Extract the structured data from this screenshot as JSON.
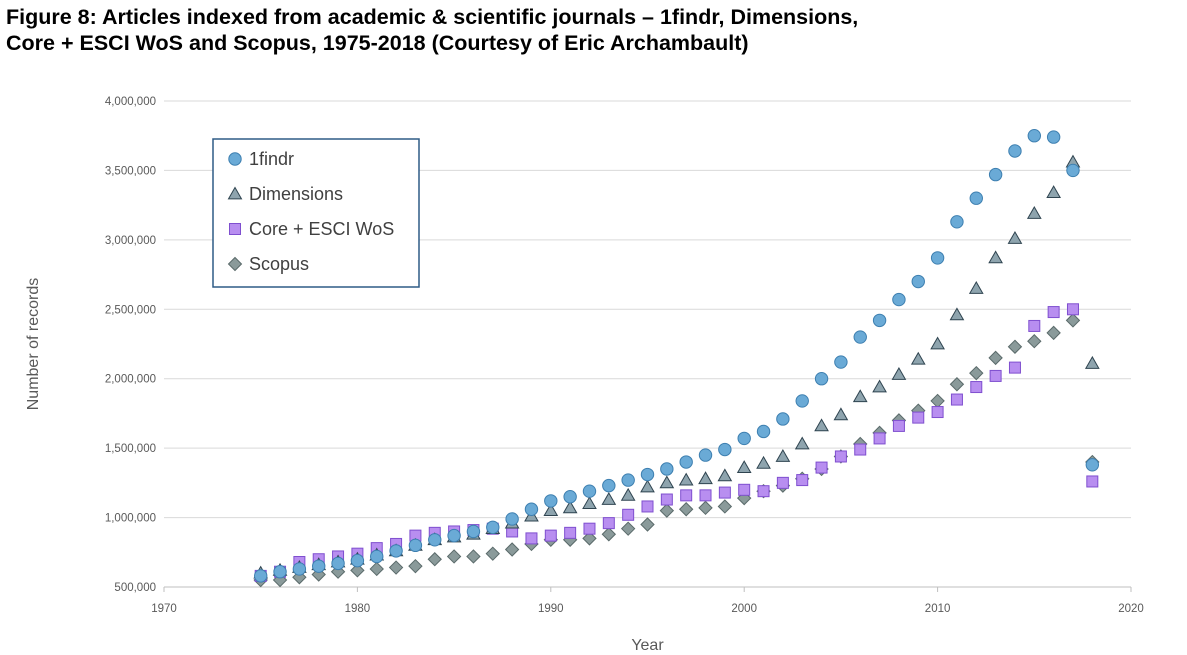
{
  "figure": {
    "title_line1": "Figure 8: Articles indexed from academic & scientific journals – 1findr, Dimensions,",
    "title_line2": "Core + ESCI WoS and Scopus, 1975-2018 (Courtesy of Eric Archambault)"
  },
  "chart_data": {
    "type": "scatter",
    "title": "Figure 8: Articles indexed from academic & scientific journals – 1findr, Dimensions, Core + ESCI WoS and Scopus, 1975-2018 (Courtesy of Eric Archambault)",
    "xlabel": "Year",
    "ylabel": "Number of records",
    "xlim": [
      1970,
      2020
    ],
    "ylim": [
      500000,
      4000000
    ],
    "xticks": [
      1970,
      1980,
      1990,
      2000,
      2010,
      2020
    ],
    "xtick_labels": [
      "1970",
      "1980",
      "1990",
      "2000",
      "2010",
      "2020"
    ],
    "yticks": [
      500000,
      1000000,
      1500000,
      2000000,
      2500000,
      3000000,
      3500000,
      4000000
    ],
    "ytick_labels": [
      "500,000",
      "1,000,000",
      "1,500,000",
      "2,000,000",
      "2,500,000",
      "3,000,000",
      "3,500,000",
      "4,000,000"
    ],
    "grid": "horizontal",
    "legend_position": "top-left",
    "x": [
      1975,
      1976,
      1977,
      1978,
      1979,
      1980,
      1981,
      1982,
      1983,
      1984,
      1985,
      1986,
      1987,
      1988,
      1989,
      1990,
      1991,
      1992,
      1993,
      1994,
      1995,
      1996,
      1997,
      1998,
      1999,
      2000,
      2001,
      2002,
      2003,
      2004,
      2005,
      2006,
      2007,
      2008,
      2009,
      2010,
      2011,
      2012,
      2013,
      2014,
      2015,
      2016,
      2017,
      2018
    ],
    "series": [
      {
        "name": "1findr",
        "marker": "circle",
        "color": "#6aaad6",
        "stroke": "#3d7fb0",
        "values": [
          580000,
          610000,
          630000,
          650000,
          670000,
          690000,
          720000,
          760000,
          800000,
          840000,
          870000,
          900000,
          930000,
          990000,
          1060000,
          1120000,
          1150000,
          1190000,
          1230000,
          1270000,
          1310000,
          1350000,
          1400000,
          1450000,
          1490000,
          1570000,
          1620000,
          1710000,
          1840000,
          2000000,
          2120000,
          2300000,
          2420000,
          2570000,
          2700000,
          2870000,
          3130000,
          3300000,
          3470000,
          3640000,
          3750000,
          3740000,
          3500000,
          1380000
        ]
      },
      {
        "name": "Dimensions",
        "marker": "triangle",
        "color": "#8ea4ae",
        "stroke": "#2f4450",
        "values": [
          600000,
          620000,
          640000,
          660000,
          680000,
          700000,
          730000,
          760000,
          800000,
          840000,
          860000,
          880000,
          920000,
          960000,
          1010000,
          1050000,
          1070000,
          1100000,
          1130000,
          1160000,
          1220000,
          1250000,
          1270000,
          1280000,
          1300000,
          1360000,
          1390000,
          1440000,
          1530000,
          1660000,
          1740000,
          1870000,
          1940000,
          2030000,
          2140000,
          2250000,
          2460000,
          2650000,
          2870000,
          3010000,
          3190000,
          3340000,
          3560000,
          2110000
        ]
      },
      {
        "name": "Core + ESCI WoS",
        "marker": "square",
        "color": "#b88ef0",
        "stroke": "#7f4fcf",
        "values": [
          580000,
          610000,
          680000,
          700000,
          720000,
          740000,
          780000,
          810000,
          870000,
          890000,
          900000,
          910000,
          920000,
          900000,
          850000,
          870000,
          890000,
          920000,
          960000,
          1020000,
          1080000,
          1130000,
          1160000,
          1160000,
          1180000,
          1200000,
          1190000,
          1250000,
          1270000,
          1360000,
          1440000,
          1490000,
          1570000,
          1660000,
          1720000,
          1760000,
          1850000,
          1940000,
          2020000,
          2080000,
          2380000,
          2480000,
          2500000,
          1260000
        ]
      },
      {
        "name": "Scopus",
        "marker": "diamond",
        "color": "#8a9a9a",
        "stroke": "#5a6a6a",
        "values": [
          550000,
          550000,
          570000,
          590000,
          610000,
          620000,
          630000,
          640000,
          650000,
          700000,
          720000,
          720000,
          740000,
          770000,
          810000,
          840000,
          840000,
          850000,
          880000,
          920000,
          950000,
          1050000,
          1060000,
          1070000,
          1080000,
          1140000,
          1190000,
          1230000,
          1280000,
          1350000,
          1440000,
          1530000,
          1610000,
          1700000,
          1770000,
          1840000,
          1960000,
          2040000,
          2150000,
          2230000,
          2270000,
          2330000,
          2420000,
          1400000
        ]
      }
    ]
  }
}
